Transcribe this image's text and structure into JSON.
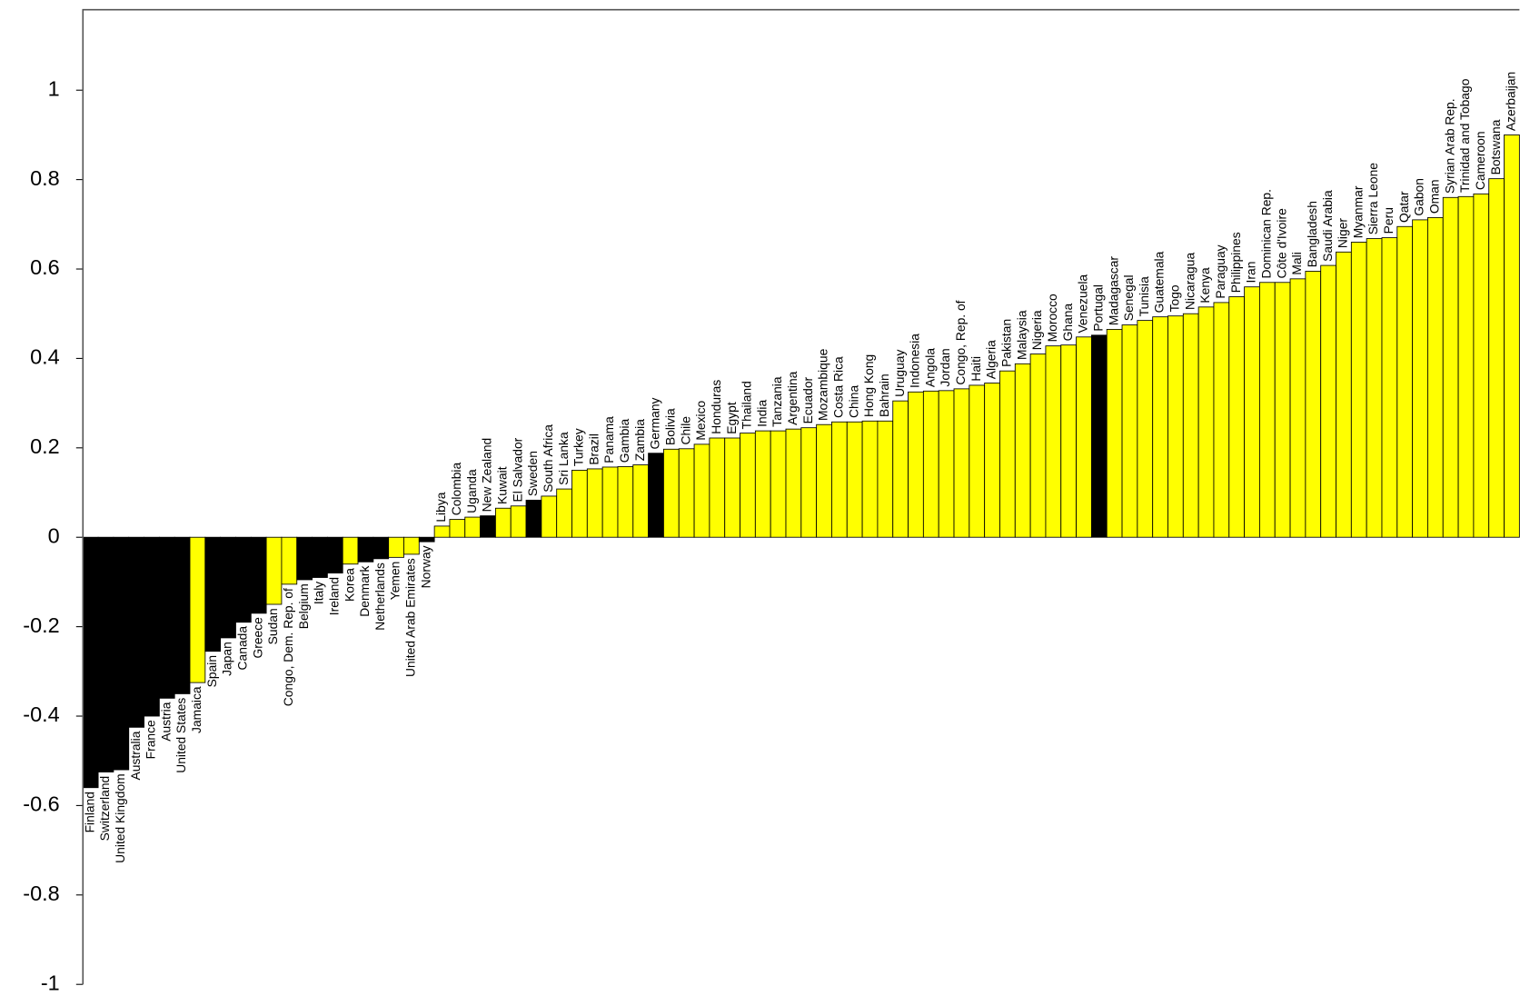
{
  "chart_data": {
    "type": "bar",
    "categories": [
      "Finland",
      "Switzerland",
      "United Kingdom",
      "Australia",
      "France",
      "Austria",
      "United States",
      "Jamaica",
      "Spain",
      "Japan",
      "Canada",
      "Greece",
      "Sudan",
      "Congo, Dem. Rep. of",
      "Belgium",
      "Italy",
      "Ireland",
      "Korea",
      "Denmark",
      "Netherlands",
      "Yemen",
      "United Arab Emirates",
      "Norway",
      "Libya",
      "Colombia",
      "Uganda",
      "New Zealand",
      "Kuwait",
      "El Salvador",
      "Sweden",
      "South Africa",
      "Sri Lanka",
      "Turkey",
      "Brazil",
      "Panama",
      "Gambia",
      "Zambia",
      "Germany",
      "Bolivia",
      "Chile",
      "Mexico",
      "Honduras",
      "Egypt",
      "Thailand",
      "India",
      "Tanzania",
      "Argentina",
      "Ecuador",
      "Mozambique",
      "Costa Rica",
      "China",
      "Hong Kong",
      "Bahrain",
      "Uruguay",
      "Indonesia",
      "Angola",
      "Jordan",
      "Congo, Rep. of",
      "Haiti",
      "Algeria",
      "Pakistan",
      "Malaysia",
      "Nigeria",
      "Morocco",
      "Ghana",
      "Venezuela",
      "Portugal",
      "Madagascar",
      "Senegal",
      "Tunisia",
      "Guatemala",
      "Togo",
      "Nicaragua",
      "Kenya",
      "Paraguay",
      "Philippines",
      "Iran",
      "Dominican Rep.",
      "Côte d'Ivoire",
      "Mali",
      "Bangladesh",
      "Saudi Arabia",
      "Niger",
      "Myanmar",
      "Sierra Leone",
      "Peru",
      "Qatar",
      "Gabon",
      "Oman",
      "Syrian Arab Rep.",
      "Trinidad and Tobago",
      "Cameroon",
      "Botswana",
      "Azerbaijan"
    ],
    "values": [
      -0.56,
      -0.525,
      -0.52,
      -0.425,
      -0.4,
      -0.36,
      -0.35,
      -0.325,
      -0.255,
      -0.225,
      -0.19,
      -0.17,
      -0.15,
      -0.105,
      -0.095,
      -0.09,
      -0.08,
      -0.06,
      -0.055,
      -0.048,
      -0.045,
      -0.038,
      -0.01,
      0.025,
      0.04,
      0.045,
      0.048,
      0.065,
      0.07,
      0.083,
      0.092,
      0.108,
      0.15,
      0.153,
      0.157,
      0.158,
      0.162,
      0.188,
      0.197,
      0.198,
      0.208,
      0.222,
      0.222,
      0.233,
      0.238,
      0.238,
      0.242,
      0.245,
      0.252,
      0.258,
      0.258,
      0.26,
      0.26,
      0.305,
      0.325,
      0.327,
      0.328,
      0.332,
      0.34,
      0.345,
      0.372,
      0.388,
      0.41,
      0.428,
      0.43,
      0.448,
      0.452,
      0.465,
      0.475,
      0.485,
      0.493,
      0.495,
      0.5,
      0.515,
      0.525,
      0.538,
      0.56,
      0.57,
      0.57,
      0.578,
      0.595,
      0.608,
      0.638,
      0.66,
      0.668,
      0.67,
      0.695,
      0.71,
      0.715,
      0.76,
      0.762,
      0.768,
      0.802,
      0.9
    ],
    "colors": [
      "#000000",
      "#000000",
      "#000000",
      "#000000",
      "#000000",
      "#000000",
      "#000000",
      "#ffff00",
      "#000000",
      "#000000",
      "#000000",
      "#000000",
      "#ffff00",
      "#ffff00",
      "#000000",
      "#000000",
      "#000000",
      "#ffff00",
      "#000000",
      "#000000",
      "#ffff00",
      "#ffff00",
      "#000000",
      "#ffff00",
      "#ffff00",
      "#ffff00",
      "#000000",
      "#ffff00",
      "#ffff00",
      "#000000",
      "#ffff00",
      "#ffff00",
      "#ffff00",
      "#ffff00",
      "#ffff00",
      "#ffff00",
      "#ffff00",
      "#000000",
      "#ffff00",
      "#ffff00",
      "#ffff00",
      "#ffff00",
      "#ffff00",
      "#ffff00",
      "#ffff00",
      "#ffff00",
      "#ffff00",
      "#ffff00",
      "#ffff00",
      "#ffff00",
      "#ffff00",
      "#ffff00",
      "#ffff00",
      "#ffff00",
      "#ffff00",
      "#ffff00",
      "#ffff00",
      "#ffff00",
      "#ffff00",
      "#ffff00",
      "#ffff00",
      "#ffff00",
      "#ffff00",
      "#ffff00",
      "#ffff00",
      "#ffff00",
      "#000000",
      "#ffff00",
      "#ffff00",
      "#ffff00",
      "#ffff00",
      "#ffff00",
      "#ffff00",
      "#ffff00",
      "#ffff00",
      "#ffff00",
      "#ffff00",
      "#ffff00",
      "#ffff00",
      "#ffff00",
      "#ffff00",
      "#ffff00",
      "#ffff00",
      "#ffff00",
      "#ffff00",
      "#ffff00",
      "#ffff00",
      "#ffff00",
      "#ffff00",
      "#ffff00",
      "#ffff00",
      "#ffff00",
      "#ffff00",
      "#ffff00"
    ],
    "ylim": [
      -1,
      1.18
    ],
    "yticks": [
      -1,
      -0.8,
      -0.6,
      -0.4,
      -0.2,
      0,
      0.2,
      0.4,
      0.6,
      0.8,
      1
    ],
    "grid": false
  }
}
